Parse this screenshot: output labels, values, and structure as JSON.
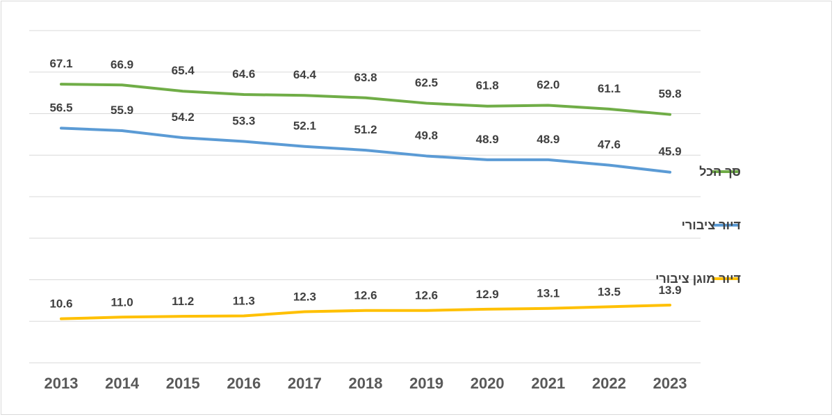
{
  "chart_data": {
    "type": "line",
    "title": "",
    "xlabel": "",
    "ylabel": "",
    "x": [
      "2013",
      "2014",
      "2015",
      "2016",
      "2017",
      "2018",
      "2019",
      "2020",
      "2021",
      "2022",
      "2023"
    ],
    "ylim": [
      0,
      80
    ],
    "grid": true,
    "legend_position": "right",
    "series": [
      {
        "name": "סך הכל",
        "color": "#70ad47",
        "values": [
          67.1,
          66.9,
          65.4,
          64.6,
          64.4,
          63.8,
          62.5,
          61.8,
          62.0,
          61.1,
          59.8
        ],
        "labels": [
          "67.1",
          "66.9",
          "65.4",
          "64.6",
          "64.4",
          "63.8",
          "62.5",
          "61.8",
          "62.0",
          "61.1",
          "59.8"
        ]
      },
      {
        "name": "דיור ציבורי",
        "color": "#5b9bd5",
        "values": [
          56.5,
          55.9,
          54.2,
          53.3,
          52.1,
          51.2,
          49.8,
          48.9,
          48.9,
          47.6,
          45.9
        ],
        "labels": [
          "56.5",
          "55.9",
          "54.2",
          "53.3",
          "52.1",
          "51.2",
          "49.8",
          "48.9",
          "48.9",
          "47.6",
          "45.9"
        ]
      },
      {
        "name": "דיור מוגן ציבורי",
        "color": "#ffc000",
        "values": [
          10.6,
          11.0,
          11.2,
          11.3,
          12.3,
          12.6,
          12.6,
          12.9,
          13.1,
          13.5,
          13.9
        ],
        "labels": [
          "10.6",
          "11.0",
          "11.2",
          "11.3",
          "12.3",
          "12.6",
          "12.6",
          "12.9",
          "13.1",
          "13.5",
          "13.9"
        ]
      }
    ]
  }
}
